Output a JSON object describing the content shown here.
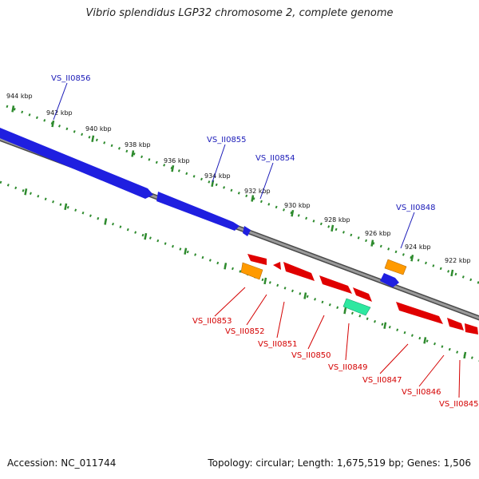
{
  "title": "Vibrio splendidus LGP32 chromosome 2, complete genome",
  "footer": {
    "accession": "Accession: NC_011744",
    "summary": "Topology: circular; Length: 1,675,519 bp; Genes: 1,506"
  },
  "colors": {
    "backbone": "#888888",
    "tick": "#2e8b2e",
    "forward_gene": "#1f1fe0",
    "reverse_gene": "#e00000",
    "pseudo_gene": "#ff9a00",
    "rna_gene": "#2ee8a0",
    "forward_label": "#1a1ab8",
    "reverse_label": "#d40000"
  },
  "ticks": [
    "944 kbp",
    "942 kbp",
    "940 kbp",
    "938 kbp",
    "936 kbp",
    "934 kbp",
    "932 kbp",
    "930 kbp",
    "928 kbp",
    "926 kbp",
    "924 kbp",
    "922 kbp"
  ],
  "forward_labels": [
    "VS_II0856",
    "VS_II0855",
    "VS_II0854",
    "VS_II0848"
  ],
  "reverse_labels": [
    "VS_II0853",
    "VS_II0852",
    "VS_II0851",
    "VS_II0850",
    "VS_II0849",
    "VS_II0847",
    "VS_II0846",
    "VS_II0845"
  ]
}
